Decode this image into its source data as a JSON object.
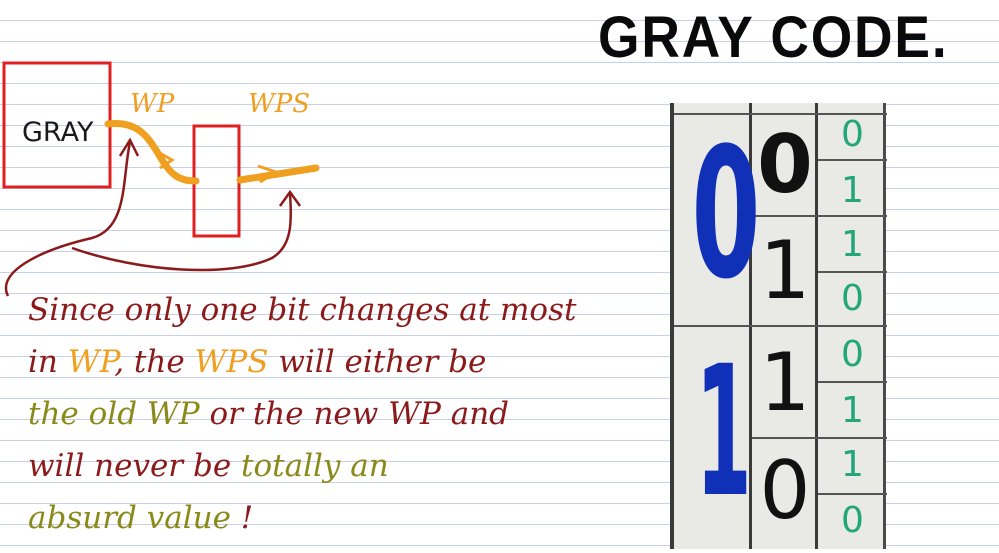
{
  "title": "GRAY CODE.",
  "diagram": {
    "gray_box_label": "GRAY",
    "wp_label": "WP",
    "wps_label": "WPS"
  },
  "note": {
    "line1": "Since only one bit changes at most",
    "line2_a": "in ",
    "line2_b": "WP",
    "line2_c": ", the ",
    "line2_d": "WPS",
    "line2_e": " will either be",
    "line3_a": "the ",
    "line3_b": "old WP",
    "line3_c": " or the ",
    "line3_d": "new WP",
    "line3_e": " and",
    "line4_a": "will never be ",
    "line4_b": "totally an",
    "line5_a": "absurd value",
    "line5_b": " !"
  },
  "gray_table": {
    "msb": [
      "0",
      "1"
    ],
    "mid": [
      "0",
      "1",
      "1",
      "0"
    ],
    "lsb": [
      "0",
      "1",
      "1",
      "0",
      "0",
      "1",
      "1",
      "0"
    ]
  },
  "colors": {
    "red_pen": "#8b1a1a",
    "orange_pen": "#f0a020",
    "olive_pen": "#8a8a1a",
    "box_red": "#e02020",
    "blue_digit": "#1030b8",
    "green_digit": "#23a77a"
  }
}
